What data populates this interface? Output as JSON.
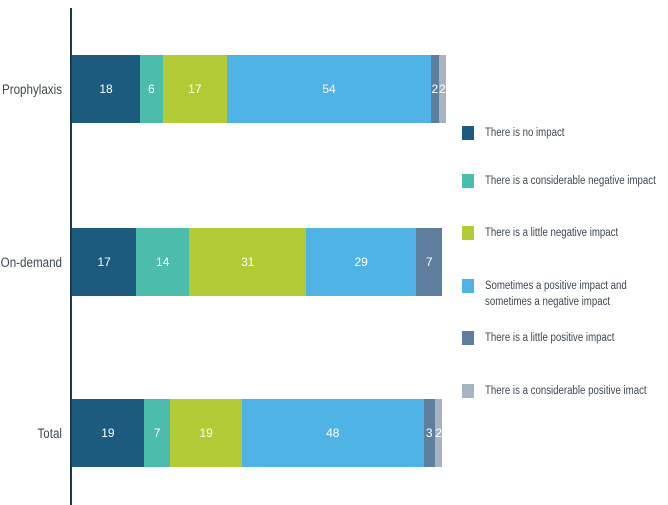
{
  "chart_data": {
    "type": "bar",
    "orientation": "horizontal",
    "stacked": true,
    "title": "",
    "categories": [
      "Prophylaxis",
      "On-demand",
      "Total"
    ],
    "series": [
      {
        "name": "There is no impact",
        "color": "#1d5b7e",
        "values": [
          18,
          17,
          19
        ]
      },
      {
        "name": "There is a considerable negative impact",
        "color": "#4cbcac",
        "values": [
          6,
          14,
          7
        ]
      },
      {
        "name": "There is a little negative impact",
        "color": "#b4cb38",
        "values": [
          17,
          31,
          19
        ]
      },
      {
        "name": "Sometimes a positive impact and\nsometimes a negative impact",
        "color": "#4fb3e5",
        "values": [
          54,
          29,
          48
        ]
      },
      {
        "name": "There is a little positive impact",
        "color": "#5e7e9d",
        "values": [
          2,
          7,
          3
        ]
      },
      {
        "name": "There is a considerable positive imact",
        "color": "#a7b2c3",
        "values": [
          2,
          0,
          2
        ]
      }
    ],
    "value_labels": "inside-segments, white",
    "legend_position": "right",
    "x_axis": {
      "visible": false,
      "ticks": []
    },
    "y_axis": {
      "line_visible": true
    },
    "grid": false,
    "background": "#ffffff"
  },
  "style": {
    "axis_line_color": "#1c3a54",
    "label_text_color": "#3e4854",
    "value_text_color": "#ffffff"
  }
}
